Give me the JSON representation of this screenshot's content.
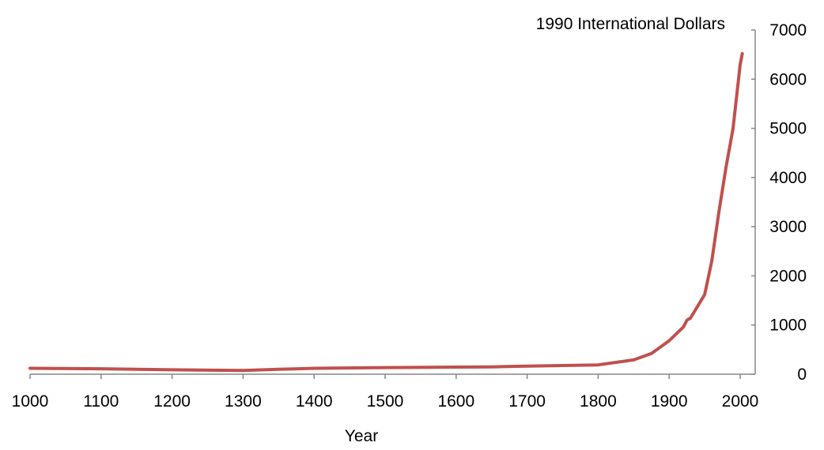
{
  "chart_data": {
    "type": "line",
    "title": "",
    "xlabel": "Year",
    "ylabel": "1990 International Dollars",
    "xlim": [
      1000,
      2000
    ],
    "ylim": [
      0,
      7000
    ],
    "x_ticks": [
      1000,
      1100,
      1200,
      1300,
      1400,
      1500,
      1600,
      1700,
      1800,
      1900,
      2000
    ],
    "y_ticks": [
      0,
      1000,
      2000,
      3000,
      4000,
      5000,
      6000,
      7000
    ],
    "x_tick_labels": [
      "1000",
      "1100",
      "1200",
      "1300",
      "1400",
      "1500",
      "1600",
      "1700",
      "1800",
      "1900",
      "2000"
    ],
    "y_tick_labels": [
      "0",
      "1000",
      "2000",
      "3000",
      "4000",
      "5000",
      "6000",
      "7000"
    ],
    "y_axis_side": "right",
    "grid": false,
    "series": [
      {
        "color": "#C0504D",
        "x": [
          1000,
          1100,
          1200,
          1300,
          1350,
          1400,
          1500,
          1600,
          1650,
          1700,
          1800,
          1850,
          1875,
          1900,
          1920,
          1925,
          1930,
          1950,
          1960,
          1970,
          1980,
          1990,
          2000,
          2003
        ],
        "y": [
          120,
          110,
          90,
          75,
          100,
          120,
          135,
          145,
          150,
          165,
          190,
          290,
          420,
          680,
          960,
          1100,
          1140,
          1620,
          2300,
          3300,
          4200,
          5000,
          6300,
          6520
        ]
      }
    ]
  }
}
